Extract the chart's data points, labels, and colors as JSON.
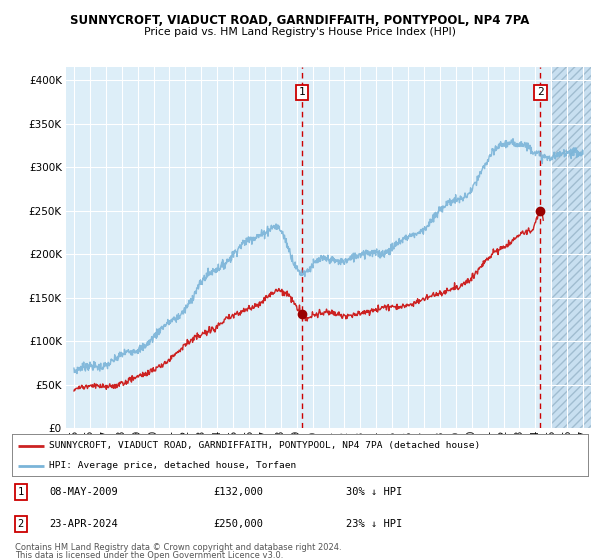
{
  "title1": "SUNNYCROFT, VIADUCT ROAD, GARNDIFFAITH, PONTYPOOL, NP4 7PA",
  "title2": "Price paid vs. HM Land Registry's House Price Index (HPI)",
  "ytick_values": [
    0,
    50000,
    100000,
    150000,
    200000,
    250000,
    300000,
    350000,
    400000
  ],
  "ylim": [
    0,
    415000
  ],
  "x_start_year": 1994.5,
  "x_end_year": 2027.5,
  "xticks": [
    1995,
    1996,
    1997,
    1998,
    1999,
    2000,
    2001,
    2002,
    2003,
    2004,
    2005,
    2006,
    2007,
    2008,
    2009,
    2010,
    2011,
    2012,
    2013,
    2014,
    2015,
    2016,
    2017,
    2018,
    2019,
    2020,
    2021,
    2022,
    2023,
    2024,
    2025,
    2026,
    2027
  ],
  "hpi_color": "#7ab4d8",
  "price_color": "#cc2222",
  "annotation_box_color": "#cc0000",
  "vline_color": "#cc0000",
  "bg_plot_color": "#ddeef8",
  "grid_color": "#ffffff",
  "future_start": 2025.0,
  "event1_x": 2009.35,
  "event1_y": 132000,
  "event2_x": 2024.32,
  "event2_y": 250000,
  "event1_date": "08-MAY-2009",
  "event1_price": "£132,000",
  "event1_hpi": "30% ↓ HPI",
  "event2_date": "23-APR-2024",
  "event2_price": "£250,000",
  "event2_hpi": "23% ↓ HPI",
  "legend_line1": "SUNNYCROFT, VIADUCT ROAD, GARNDIFFAITH, PONTYPOOL, NP4 7PA (detached house)",
  "legend_line2": "HPI: Average price, detached house, Torfaen",
  "footnote1": "Contains HM Land Registry data © Crown copyright and database right 2024.",
  "footnote2": "This data is licensed under the Open Government Licence v3.0."
}
